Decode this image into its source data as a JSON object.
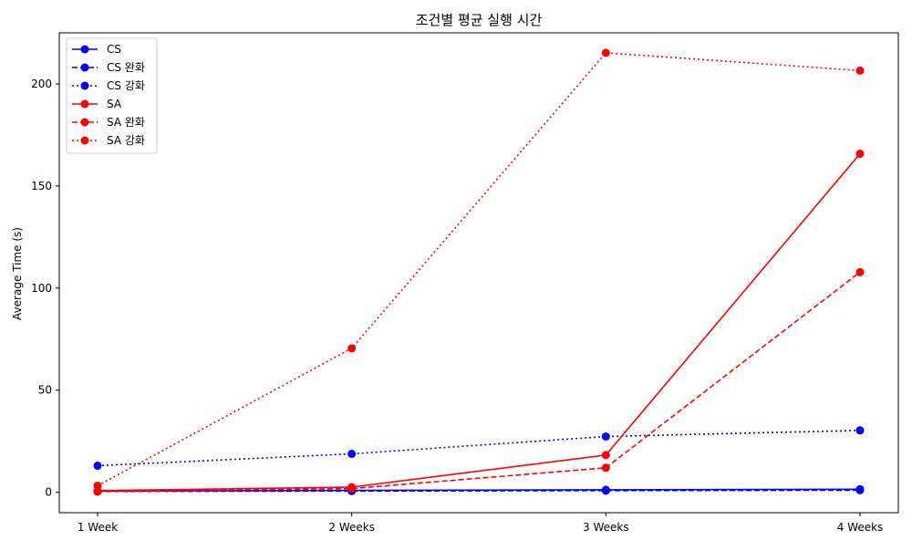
{
  "chart_data": {
    "type": "line",
    "title": "조건별 평균 실행 시간",
    "xlabel": "",
    "ylabel": "Average Time (s)",
    "categories": [
      "1 Week",
      "2 Weeks",
      "3 Weeks",
      "4 Weeks"
    ],
    "ylim": [
      -10,
      225
    ],
    "yticks": [
      0,
      50,
      100,
      150,
      200
    ],
    "grid": false,
    "legend_position": "top-left",
    "series": [
      {
        "name": "CS",
        "color": "#0000ff",
        "linestyle": "solid",
        "marker": "circle",
        "values": [
          0.6,
          0.9,
          1.2,
          1.5
        ]
      },
      {
        "name": "CS 완화",
        "color": "#0000ff",
        "linestyle": "dashed",
        "marker": "circle",
        "values": [
          0.4,
          0.6,
          0.8,
          1.0
        ]
      },
      {
        "name": "CS 강화",
        "color": "#0000ff",
        "linestyle": "dotted",
        "marker": "circle",
        "values": [
          13.0,
          18.8,
          27.3,
          30.3
        ]
      },
      {
        "name": "SA",
        "color": "#ff0000",
        "linestyle": "solid",
        "marker": "circle",
        "values": [
          0.8,
          2.5,
          18.2,
          165.8
        ]
      },
      {
        "name": "SA 완화",
        "color": "#ff0000",
        "linestyle": "dashed",
        "marker": "circle",
        "values": [
          0.3,
          1.8,
          12.0,
          107.8
        ]
      },
      {
        "name": "SA 강화",
        "color": "#ff0000",
        "linestyle": "dotted",
        "marker": "circle",
        "values": [
          3.2,
          70.5,
          215.2,
          206.5
        ]
      }
    ]
  }
}
